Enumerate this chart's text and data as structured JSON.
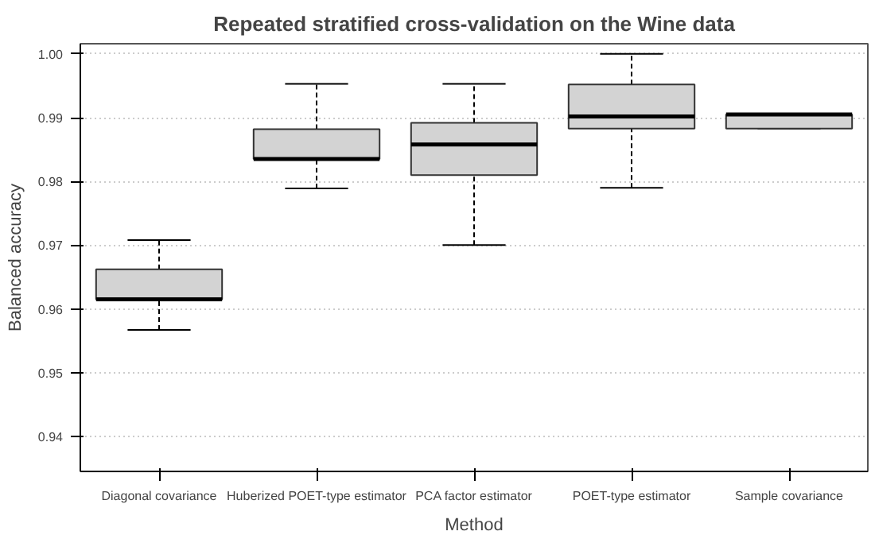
{
  "chart_data": {
    "type": "box",
    "title": "Repeated stratified cross-validation on the Wine data",
    "xlabel": "Method",
    "ylabel": "Balanced accuracy",
    "categories": [
      "Diagonal covariance",
      "Huberized POET-type estimator",
      "PCA factor estimator",
      "POET-type estimator",
      "Sample covariance"
    ],
    "color": "#d3d3d3",
    "boxes": [
      {
        "low": 0.9567,
        "q1": 0.9615,
        "median": 0.9615,
        "q3": 0.9662,
        "high": 0.9708
      },
      {
        "low": 0.9789,
        "q1": 0.9835,
        "median": 0.9835,
        "q3": 0.9882,
        "high": 0.9953
      },
      {
        "low": 0.97,
        "q1": 0.981,
        "median": 0.9858,
        "q3": 0.9892,
        "high": 0.9953
      },
      {
        "low": 0.979,
        "q1": 0.9883,
        "median": 0.9902,
        "q3": 0.9952,
        "high": 1.0
      },
      {
        "low": 0.9883,
        "q1": 0.9883,
        "median": 0.9905,
        "q3": 0.9905,
        "high": 0.9905
      }
    ],
    "ylim": [
      0.9345,
      1.0016
    ],
    "yticks": [
      0.94,
      0.95,
      0.96,
      0.97,
      0.98,
      0.99,
      {
        "value": 1.0,
        "label": "1.00"
      }
    ],
    "grid": "y"
  }
}
